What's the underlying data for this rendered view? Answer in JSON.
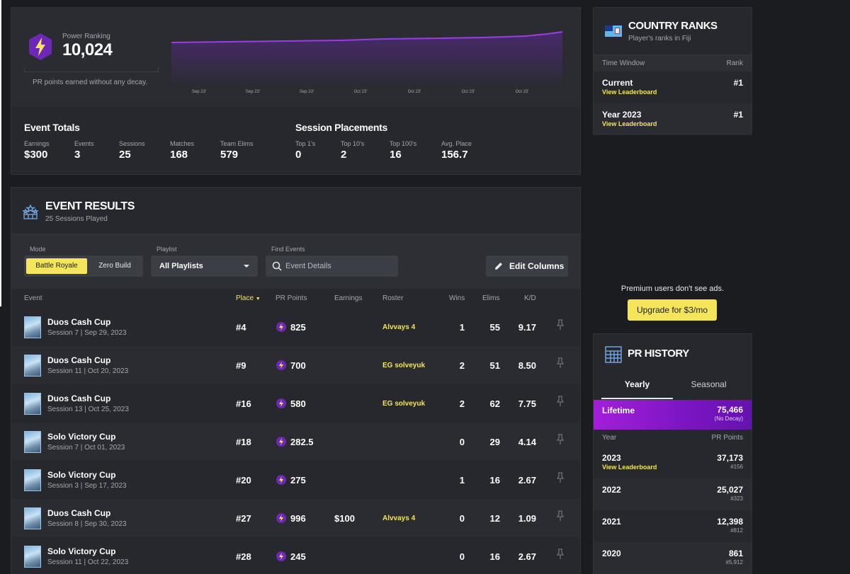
{
  "colors": {
    "accent_yellow": "#f5e55a",
    "purple": "#7a15c2",
    "bg": "#1b1c20",
    "card": "#26282d"
  },
  "power_ranking": {
    "label": "Power Ranking",
    "value": "10,024",
    "note": "PR points earned without any decay.",
    "chart_ticks": [
      "Sep 23'",
      "Sep 23'",
      "Sep 23'",
      "Oct 23'",
      "Oct 23'",
      "Oct 23'",
      "Oct 23'"
    ]
  },
  "event_totals": {
    "title": "Event Totals",
    "stats": [
      {
        "label": "Earnings",
        "value": "$300"
      },
      {
        "label": "Events",
        "value": "3"
      },
      {
        "label": "Sessions",
        "value": "25"
      },
      {
        "label": "Matches",
        "value": "168"
      },
      {
        "label": "Team Elims",
        "value": "579"
      }
    ]
  },
  "session_placements": {
    "title": "Session Placements",
    "stats": [
      {
        "label": "Top 1's",
        "value": "0"
      },
      {
        "label": "Top 10's",
        "value": "2"
      },
      {
        "label": "Top 100's",
        "value": "16"
      },
      {
        "label": "Avg. Place",
        "value": "156.7"
      }
    ]
  },
  "event_results": {
    "title": "EVENT RESULTS",
    "subtitle": "25 Sessions Played",
    "filters": {
      "mode_label": "Mode",
      "mode_options": [
        "Battle Royale",
        "Zero Build"
      ],
      "playlist_label": "Playlist",
      "playlist_value": "All Playlists",
      "find_label": "Find Events",
      "find_placeholder": "Event Details",
      "edit_columns": "Edit Columns"
    },
    "columns": [
      "Event",
      "Place",
      "PR Points",
      "Earnings",
      "Roster",
      "Wins",
      "Elims",
      "K/D"
    ],
    "rows": [
      {
        "name": "Duos Cash Cup",
        "meta": "Session 7 | Sep 29, 2023",
        "place": "#4",
        "pr": "825",
        "earnings": "",
        "roster": "Alvvays 4",
        "wins": "1",
        "elims": "55",
        "kd": "9.17"
      },
      {
        "name": "Duos Cash Cup",
        "meta": "Session 11 | Oct 20, 2023",
        "place": "#9",
        "pr": "700",
        "earnings": "",
        "roster": "EG solveyuk",
        "wins": "2",
        "elims": "51",
        "kd": "8.50"
      },
      {
        "name": "Duos Cash Cup",
        "meta": "Session 13 | Oct 25, 2023",
        "place": "#16",
        "pr": "580",
        "earnings": "",
        "roster": "EG solveyuk",
        "wins": "2",
        "elims": "62",
        "kd": "7.75"
      },
      {
        "name": "Solo Victory Cup",
        "meta": "Session 7 | Oct 01, 2023",
        "place": "#18",
        "pr": "282.5",
        "earnings": "",
        "roster": "",
        "wins": "0",
        "elims": "29",
        "kd": "4.14"
      },
      {
        "name": "Solo Victory Cup",
        "meta": "Session 3 | Sep 17, 2023",
        "place": "#20",
        "pr": "275",
        "earnings": "",
        "roster": "",
        "wins": "1",
        "elims": "16",
        "kd": "2.67"
      },
      {
        "name": "Duos Cash Cup",
        "meta": "Session 8 | Sep 30, 2023",
        "place": "#27",
        "pr": "996",
        "earnings": "$100",
        "roster": "Alvvays 4",
        "wins": "0",
        "elims": "12",
        "kd": "1.09"
      },
      {
        "name": "Solo Victory Cup",
        "meta": "Session 11 | Oct 22, 2023",
        "place": "#28",
        "pr": "245",
        "earnings": "",
        "roster": "",
        "wins": "0",
        "elims": "16",
        "kd": "2.67"
      }
    ]
  },
  "country_ranks": {
    "title": "COUNTRY RANKS",
    "subtitle": "Player's ranks in Fiji",
    "head_left": "Time Window",
    "head_right": "Rank",
    "rows": [
      {
        "name": "Current",
        "link": "View Leaderboard",
        "rank": "#1"
      },
      {
        "name": "Year 2023",
        "link": "View Leaderboard",
        "rank": "#1"
      }
    ]
  },
  "ad": {
    "note": "Premium users don't see ads.",
    "button": "Upgrade for $3/mo"
  },
  "pr_history": {
    "title": "PR HISTORY",
    "tabs": [
      "Yearly",
      "Seasonal"
    ],
    "lifetime": {
      "label": "Lifetime",
      "value": "75,466",
      "sub": "(No Decay)"
    },
    "head_left": "Year",
    "head_right": "PR Points",
    "rows": [
      {
        "year": "2023",
        "link": "View Leaderboard",
        "points": "37,173",
        "rank": "#156"
      },
      {
        "year": "2022",
        "link": "",
        "points": "25,027",
        "rank": "#323"
      },
      {
        "year": "2021",
        "link": "",
        "points": "12,398",
        "rank": "#812"
      },
      {
        "year": "2020",
        "link": "",
        "points": "861",
        "rank": "#5,912"
      }
    ]
  }
}
